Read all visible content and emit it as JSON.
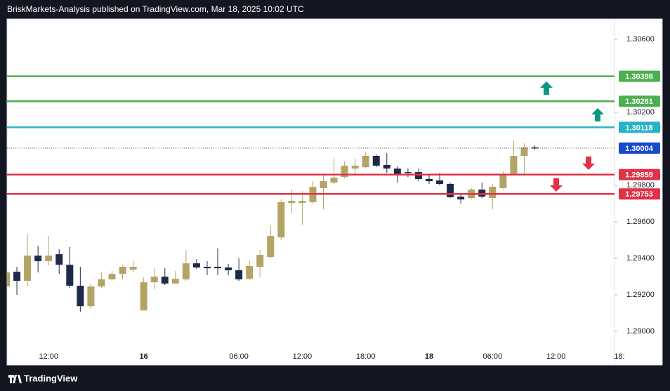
{
  "header": "BriskMarkets-Analysis published on TradingView.com, Mar 18, 2025 10:02 UTC",
  "footer": "TradingView",
  "chart_data": {
    "type": "candlestick",
    "categories": [
      null,
      null,
      null,
      null,
      "12:00",
      null,
      null,
      null,
      null,
      null,
      null,
      null,
      null,
      "16",
      null,
      null,
      null,
      null,
      null,
      null,
      null,
      null,
      "06:00",
      null,
      null,
      null,
      null,
      null,
      "12:00",
      null,
      null,
      null,
      null,
      null,
      "18:00",
      null,
      null,
      null,
      null,
      null,
      "18",
      null,
      null,
      null,
      null,
      null,
      "06:00",
      null,
      null,
      null,
      null,
      null,
      "12:00",
      null,
      null,
      null,
      null,
      null,
      "18:"
    ],
    "open": [
      1.29246,
      1.29327,
      1.29277,
      1.29415,
      1.29385,
      1.29423,
      1.29365,
      1.2925,
      1.29138,
      1.29246,
      1.29285,
      1.29315,
      1.29338,
      1.29115,
      1.29269,
      1.293,
      1.29262,
      1.29285,
      1.29373,
      1.29354,
      1.29354,
      1.2935,
      1.29335,
      1.29288,
      1.29354,
      1.29408,
      1.29515,
      1.29704,
      1.29704,
      1.29708,
      1.29785,
      1.29815,
      1.29846,
      1.29892,
      1.299,
      1.29962,
      1.29912,
      1.29892,
      1.29873,
      1.29873,
      1.29835,
      1.29827,
      1.29808,
      1.29738,
      1.29731,
      1.29777,
      1.29731,
      1.29785,
      1.29862,
      1.29962,
      1.30008,
      null,
      null,
      null,
      null,
      null,
      null,
      null,
      null
    ],
    "high": [
      1.29354,
      1.29354,
      1.29535,
      1.29469,
      1.29523,
      1.2945,
      1.29462,
      1.29354,
      1.29262,
      1.29323,
      1.29331,
      1.29362,
      1.29385,
      1.29296,
      1.29346,
      1.29346,
      1.29331,
      1.29446,
      1.29396,
      1.29385,
      1.29454,
      1.29369,
      1.294,
      1.29388,
      1.29446,
      1.29577,
      1.29723,
      1.29777,
      1.29769,
      1.29823,
      1.29854,
      1.2995,
      1.29931,
      1.29946,
      1.29985,
      1.29969,
      1.29977,
      1.29904,
      1.29892,
      1.29892,
      1.29862,
      1.29869,
      1.29815,
      1.29758,
      1.29785,
      1.29815,
      1.29808,
      1.29877,
      1.30046,
      1.30031,
      1.30019,
      null,
      null,
      null,
      null,
      null,
      null,
      null,
      null
    ],
    "low": [
      1.29238,
      1.292,
      1.29246,
      1.29323,
      1.29362,
      1.29315,
      1.29238,
      1.29108,
      1.29123,
      1.29238,
      1.29277,
      1.29285,
      1.29323,
      1.29115,
      1.29231,
      1.29254,
      1.29262,
      1.29277,
      1.29342,
      1.29308,
      1.29308,
      1.29308,
      1.29277,
      1.29281,
      1.29296,
      1.294,
      1.295,
      1.29646,
      1.29585,
      1.297,
      1.29669,
      1.29808,
      1.29838,
      1.29862,
      1.29892,
      1.299,
      1.29869,
      1.29815,
      1.29846,
      1.29823,
      1.29808,
      1.298,
      1.29731,
      1.297,
      1.29723,
      1.29731,
      1.29669,
      1.29777,
      1.29854,
      1.29862,
      1.29996,
      null,
      null,
      null,
      null,
      null,
      null,
      null,
      null
    ],
    "close": [
      1.29323,
      1.29277,
      1.29415,
      1.29385,
      1.29415,
      1.29365,
      1.2925,
      1.29138,
      1.29246,
      1.29285,
      1.29315,
      1.29354,
      1.29354,
      1.29269,
      1.293,
      1.29262,
      1.29288,
      1.29373,
      1.2935,
      1.29346,
      1.29346,
      1.29335,
      1.29285,
      1.29358,
      1.29419,
      1.29523,
      1.29708,
      1.29715,
      1.29715,
      1.29792,
      1.29823,
      1.29842,
      1.29908,
      1.29908,
      1.29962,
      1.29908,
      1.29892,
      1.29862,
      1.29869,
      1.29835,
      1.29823,
      1.29808,
      1.29735,
      1.29723,
      1.29777,
      1.29738,
      1.29792,
      1.29862,
      1.29962,
      1.30008,
      1.30004,
      null,
      null,
      null,
      null,
      null,
      null,
      null,
      null
    ],
    "up_color": "#b3a465",
    "down_color": "#1f2a4a",
    "ylim": [
      1.28931,
      1.30712
    ],
    "yticks": [
      {
        "value": 1.29,
        "label": "1.29000"
      },
      {
        "value": 1.292,
        "label": "1.29200"
      },
      {
        "value": 1.294,
        "label": "1.29400"
      },
      {
        "value": 1.296,
        "label": "1.29600"
      },
      {
        "value": 1.298,
        "label": "1.29800"
      },
      {
        "value": 1.302,
        "label": "1.30200"
      },
      {
        "value": 1.306,
        "label": "1.30600"
      }
    ],
    "grid": false,
    "levels": {
      "values": [
        1.30398,
        1.30261,
        1.30118,
        1.30004,
        1.29859,
        1.29753
      ],
      "colors": [
        "#4caf50",
        "#4caf50",
        "#26b3c8",
        "#1848cc",
        "#e03248",
        "#e03248"
      ],
      "styles": [
        "solid",
        "solid",
        "solid",
        "dotted",
        "solid",
        "solid"
      ]
    }
  }
}
